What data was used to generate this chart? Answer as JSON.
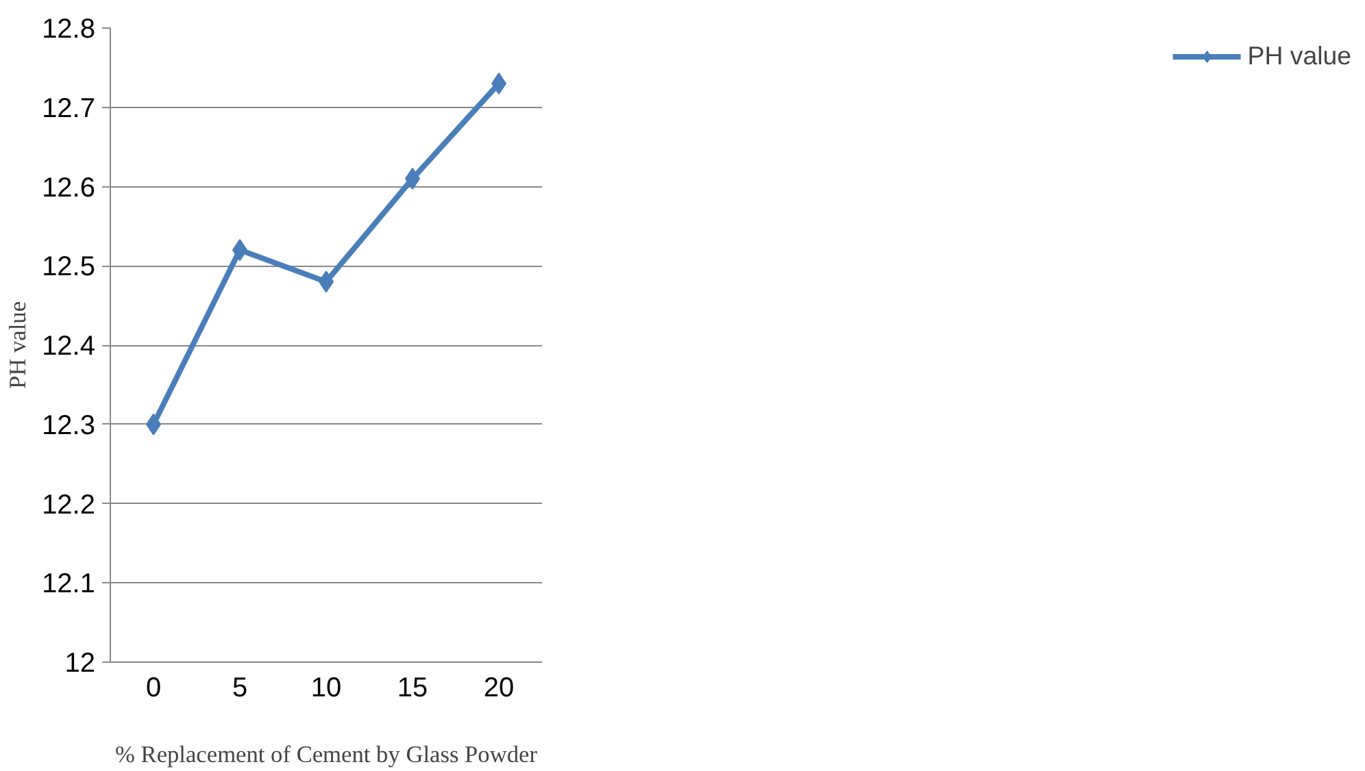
{
  "chart_data": {
    "type": "line",
    "xlabel": "% Replacement of Cement by Glass Powder",
    "ylabel": "PH value",
    "categories": [
      "0",
      "5",
      "10",
      "15",
      "20"
    ],
    "series": [
      {
        "name": "PH value",
        "color": "#4a7ebb",
        "values": [
          12.3,
          12.52,
          12.48,
          12.61,
          12.73
        ]
      }
    ],
    "ylim": [
      12,
      12.8
    ],
    "yticks": [
      12,
      12.1,
      12.2,
      12.3,
      12.4,
      12.5,
      12.6,
      12.7,
      12.8
    ],
    "grid": "y",
    "legend": "right",
    "marker": "diamond",
    "line_style": "solid"
  }
}
